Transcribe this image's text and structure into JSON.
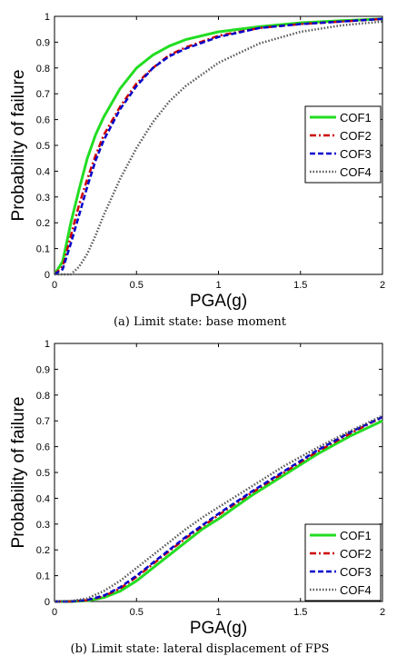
{
  "chart_data": [
    {
      "type": "line",
      "caption": "(a)  Limit state:  base moment",
      "xlabel": "PGA(g)",
      "ylabel": "Probability of failure",
      "xlim": [
        0,
        2
      ],
      "ylim": [
        0,
        1
      ],
      "xticks": [
        "0",
        "0.5",
        "1",
        "1.5",
        "2"
      ],
      "yticks": [
        "0",
        "0.1",
        "0.2",
        "0.3",
        "0.4",
        "0.5",
        "0.6",
        "0.7",
        "0.8",
        "0.9",
        "1"
      ],
      "grid": false,
      "legend_position": "center-right",
      "x": [
        0,
        0.05,
        0.1,
        0.15,
        0.2,
        0.25,
        0.3,
        0.4,
        0.5,
        0.6,
        0.7,
        0.8,
        1.0,
        1.25,
        1.5,
        1.75,
        2.0
      ],
      "series": [
        {
          "name": "COF1",
          "color": "#22dd22",
          "style": "solid",
          "values": [
            0,
            0.05,
            0.2,
            0.33,
            0.45,
            0.54,
            0.61,
            0.72,
            0.8,
            0.85,
            0.885,
            0.91,
            0.94,
            0.96,
            0.975,
            0.983,
            0.99
          ]
        },
        {
          "name": "COF2",
          "color": "#cc0000",
          "style": "dashdot",
          "values": [
            0,
            0.03,
            0.15,
            0.27,
            0.37,
            0.46,
            0.54,
            0.65,
            0.74,
            0.8,
            0.85,
            0.88,
            0.925,
            0.955,
            0.97,
            0.98,
            0.99
          ]
        },
        {
          "name": "COF3",
          "color": "#0000cc",
          "style": "dashed",
          "values": [
            0,
            0.02,
            0.12,
            0.23,
            0.34,
            0.44,
            0.52,
            0.64,
            0.73,
            0.8,
            0.845,
            0.875,
            0.92,
            0.955,
            0.97,
            0.98,
            0.99
          ]
        },
        {
          "name": "COF4",
          "color": "#555555",
          "style": "dotted",
          "values": [
            0,
            0,
            0,
            0.03,
            0.08,
            0.15,
            0.23,
            0.37,
            0.49,
            0.59,
            0.67,
            0.73,
            0.82,
            0.895,
            0.94,
            0.965,
            0.98
          ]
        }
      ]
    },
    {
      "type": "line",
      "caption": "(b)  Limit state:  lateral displacement of FPS",
      "xlabel": "PGA(g)",
      "ylabel": "Probability of failure",
      "xlim": [
        0,
        2
      ],
      "ylim": [
        0,
        1
      ],
      "xticks": [
        "0",
        "0.5",
        "1",
        "1.5",
        "2"
      ],
      "yticks": [
        "0",
        "0.1",
        "0.2",
        "0.3",
        "0.4",
        "0.5",
        "0.6",
        "0.7",
        "0.8",
        "0.9",
        "1"
      ],
      "grid": false,
      "legend_position": "bottom-right",
      "x": [
        0,
        0.1,
        0.2,
        0.3,
        0.4,
        0.5,
        0.6,
        0.7,
        0.8,
        0.9,
        1.0,
        1.2,
        1.4,
        1.6,
        1.8,
        2.0
      ],
      "series": [
        {
          "name": "COF1",
          "color": "#22dd22",
          "style": "solid",
          "values": [
            0,
            0.0,
            0.003,
            0.015,
            0.04,
            0.08,
            0.13,
            0.18,
            0.23,
            0.28,
            0.32,
            0.41,
            0.49,
            0.57,
            0.64,
            0.7
          ]
        },
        {
          "name": "COF2",
          "color": "#cc0000",
          "style": "dashdot",
          "values": [
            0,
            0.0,
            0.005,
            0.02,
            0.05,
            0.095,
            0.145,
            0.195,
            0.245,
            0.29,
            0.335,
            0.42,
            0.5,
            0.58,
            0.65,
            0.715
          ]
        },
        {
          "name": "COF3",
          "color": "#0000cc",
          "style": "dashed",
          "values": [
            0,
            0.0,
            0.006,
            0.023,
            0.055,
            0.1,
            0.15,
            0.2,
            0.25,
            0.295,
            0.34,
            0.425,
            0.505,
            0.585,
            0.655,
            0.715
          ]
        },
        {
          "name": "COF4",
          "color": "#555555",
          "style": "dotted",
          "values": [
            0,
            0.002,
            0.012,
            0.04,
            0.08,
            0.13,
            0.18,
            0.23,
            0.28,
            0.325,
            0.365,
            0.445,
            0.525,
            0.595,
            0.66,
            0.72
          ]
        }
      ]
    }
  ]
}
